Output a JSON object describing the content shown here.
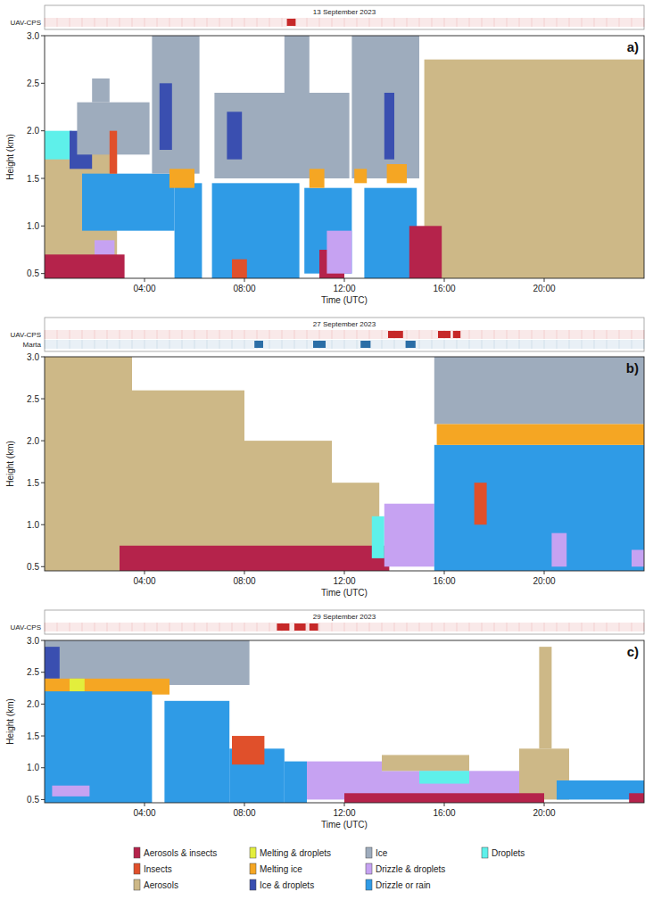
{
  "classes": [
    {
      "name": "Aerosols & insects",
      "color": "#b5234b"
    },
    {
      "name": "Insects",
      "color": "#e0502b"
    },
    {
      "name": "Aerosols",
      "color": "#cdb887"
    },
    {
      "name": "Melting & droplets",
      "color": "#e3ee3c"
    },
    {
      "name": "Melting ice",
      "color": "#f5a623"
    },
    {
      "name": "Ice & droplets",
      "color": "#3a4fb0"
    },
    {
      "name": "Ice",
      "color": "#9eacbd"
    },
    {
      "name": "Drizzle & droplets",
      "color": "#c6a2f2"
    },
    {
      "name": "Drizzle or rain",
      "color": "#2f9be6"
    },
    {
      "name": "Droplets",
      "color": "#5ef0ea"
    }
  ],
  "chart_data": [
    {
      "type": "classification",
      "title": "13 September 2023",
      "panel_label": "a)",
      "x_label": "Time (UTC)",
      "y_label": "Height (km)",
      "xlim": [
        0,
        24
      ],
      "xticks": [
        {
          "value": 4,
          "label": "04:00"
        },
        {
          "value": 8,
          "label": "08:00"
        },
        {
          "value": 12,
          "label": "12:00"
        },
        {
          "value": 16,
          "label": "16:00"
        },
        {
          "value": 20,
          "label": "20:00"
        }
      ],
      "ylim": [
        0.45,
        3.0
      ],
      "yticks": [
        0.5,
        {
          "value": 1,
          "label": "1.0"
        },
        1.5,
        {
          "value": 2,
          "label": "2.0"
        },
        2.5,
        {
          "value": 3,
          "label": "3.0"
        }
      ],
      "flights": [
        {
          "name": "UAV-CPS",
          "color": "#c62828",
          "times": [
            [
              9.7,
              10.05
            ]
          ]
        }
      ],
      "cells": [
        {
          "class": 2,
          "time": [
            0,
            2.9
          ],
          "height": [
            0.45,
            1.85
          ]
        },
        {
          "class": 2,
          "time": [
            15.2,
            24
          ],
          "height": [
            0.45,
            2.75
          ]
        },
        {
          "class": 9,
          "time": [
            0,
            1.1
          ],
          "height": [
            1.7,
            2.0
          ]
        },
        {
          "class": 5,
          "time": [
            1.0,
            1.9
          ],
          "height": [
            1.6,
            2.0
          ]
        },
        {
          "class": 6,
          "time": [
            1.3,
            4.2
          ],
          "height": [
            1.75,
            2.3
          ]
        },
        {
          "class": 6,
          "time": [
            1.9,
            2.6
          ],
          "height": [
            2.3,
            2.55
          ]
        },
        {
          "class": 8,
          "time": [
            1.5,
            5.2
          ],
          "height": [
            0.95,
            1.55
          ]
        },
        {
          "class": 7,
          "time": [
            2.0,
            2.8
          ],
          "height": [
            0.6,
            0.85
          ]
        },
        {
          "class": 6,
          "time": [
            4.3,
            6.2
          ],
          "height": [
            1.55,
            3.0
          ]
        },
        {
          "class": 6,
          "time": [
            6.8,
            12.2
          ],
          "height": [
            1.5,
            2.4
          ]
        },
        {
          "class": 6,
          "time": [
            9.6,
            10.6
          ],
          "height": [
            2.4,
            3.0
          ]
        },
        {
          "class": 6,
          "time": [
            12.3,
            15.0
          ],
          "height": [
            1.5,
            3.0
          ]
        },
        {
          "class": 5,
          "time": [
            4.6,
            5.1
          ],
          "height": [
            1.8,
            2.5
          ]
        },
        {
          "class": 5,
          "time": [
            7.3,
            7.9
          ],
          "height": [
            1.7,
            2.2
          ]
        },
        {
          "class": 5,
          "time": [
            13.6,
            14.0
          ],
          "height": [
            1.7,
            2.4
          ]
        },
        {
          "class": 8,
          "time": [
            5.2,
            6.3
          ],
          "height": [
            0.45,
            1.45
          ]
        },
        {
          "class": 8,
          "time": [
            6.7,
            10.2
          ],
          "height": [
            0.45,
            1.45
          ]
        },
        {
          "class": 8,
          "time": [
            10.4,
            12.3
          ],
          "height": [
            0.5,
            1.4
          ]
        },
        {
          "class": 8,
          "time": [
            12.8,
            14.9
          ],
          "height": [
            0.45,
            1.4
          ]
        },
        {
          "class": 4,
          "time": [
            5.0,
            6.0
          ],
          "height": [
            1.4,
            1.6
          ]
        },
        {
          "class": 4,
          "time": [
            10.6,
            11.2
          ],
          "height": [
            1.4,
            1.6
          ]
        },
        {
          "class": 4,
          "time": [
            12.4,
            12.9
          ],
          "height": [
            1.45,
            1.6
          ]
        },
        {
          "class": 4,
          "time": [
            13.7,
            14.5
          ],
          "height": [
            1.45,
            1.65
          ]
        },
        {
          "class": 1,
          "time": [
            2.6,
            2.9
          ],
          "height": [
            1.55,
            2.0
          ]
        },
        {
          "class": 1,
          "time": [
            7.5,
            8.1
          ],
          "height": [
            0.45,
            0.65
          ]
        },
        {
          "class": 0,
          "time": [
            0,
            3.2
          ],
          "height": [
            0.45,
            0.7
          ]
        },
        {
          "class": 0,
          "time": [
            11.0,
            12.0
          ],
          "height": [
            0.45,
            0.75
          ]
        },
        {
          "class": 0,
          "time": [
            14.6,
            15.9
          ],
          "height": [
            0.45,
            1.0
          ]
        },
        {
          "class": 7,
          "time": [
            11.3,
            12.3
          ],
          "height": [
            0.5,
            0.95
          ]
        }
      ]
    },
    {
      "type": "classification",
      "title": "27 September 2023",
      "panel_label": "b)",
      "x_label": "Time (UTC)",
      "y_label": "Height (km)",
      "xlim": [
        0,
        24
      ],
      "xticks": [
        {
          "value": 4,
          "label": "04:00"
        },
        {
          "value": 8,
          "label": "08:00"
        },
        {
          "value": 12,
          "label": "12:00"
        },
        {
          "value": 16,
          "label": "16:00"
        },
        {
          "value": 20,
          "label": "20:00"
        }
      ],
      "ylim": [
        0.45,
        3.0
      ],
      "yticks": [
        0.5,
        {
          "value": 1,
          "label": "1.0"
        },
        1.5,
        {
          "value": 2,
          "label": "2.0"
        },
        2.5,
        {
          "value": 3,
          "label": "3.0"
        }
      ],
      "flights": [
        {
          "name": "UAV-CPS",
          "color": "#c62828",
          "times": [
            [
              13.75,
              14.35
            ],
            [
              15.75,
              16.25
            ],
            [
              16.35,
              16.65
            ]
          ]
        },
        {
          "name": "Marta",
          "color": "#2b6ea6",
          "times": [
            [
              8.4,
              8.75
            ],
            [
              10.75,
              11.25
            ],
            [
              12.65,
              13.05
            ],
            [
              14.45,
              14.85
            ]
          ]
        }
      ],
      "cells": [
        {
          "class": 2,
          "time": [
            0,
            3.5
          ],
          "height": [
            0.45,
            3.0
          ]
        },
        {
          "class": 2,
          "time": [
            3.5,
            8.0
          ],
          "height": [
            0.45,
            2.6
          ]
        },
        {
          "class": 2,
          "time": [
            8.0,
            11.5
          ],
          "height": [
            0.45,
            2.0
          ]
        },
        {
          "class": 2,
          "time": [
            11.5,
            13.4
          ],
          "height": [
            0.45,
            1.5
          ]
        },
        {
          "class": 0,
          "time": [
            3.0,
            13.8
          ],
          "height": [
            0.45,
            0.75
          ]
        },
        {
          "class": 9,
          "time": [
            13.1,
            13.6
          ],
          "height": [
            0.6,
            1.1
          ]
        },
        {
          "class": 7,
          "time": [
            13.6,
            15.6
          ],
          "height": [
            0.5,
            1.25
          ]
        },
        {
          "class": 8,
          "time": [
            15.6,
            24
          ],
          "height": [
            0.45,
            1.95
          ]
        },
        {
          "class": 4,
          "time": [
            15.7,
            24
          ],
          "height": [
            1.95,
            2.2
          ]
        },
        {
          "class": 6,
          "time": [
            15.6,
            24
          ],
          "height": [
            2.2,
            3.0
          ]
        },
        {
          "class": 1,
          "time": [
            17.2,
            17.7
          ],
          "height": [
            1.0,
            1.5
          ]
        },
        {
          "class": 7,
          "time": [
            20.3,
            20.9
          ],
          "height": [
            0.5,
            0.9
          ]
        },
        {
          "class": 7,
          "time": [
            23.5,
            24
          ],
          "height": [
            0.5,
            0.7
          ]
        }
      ]
    },
    {
      "type": "classification",
      "title": "29 September 2023",
      "panel_label": "c)",
      "x_label": "Time (UTC)",
      "y_label": "Height (km)",
      "xlim": [
        0,
        24
      ],
      "xticks": [
        {
          "value": 4,
          "label": "04:00"
        },
        {
          "value": 8,
          "label": "08:00"
        },
        {
          "value": 12,
          "label": "12:00"
        },
        {
          "value": 16,
          "label": "16:00"
        },
        {
          "value": 20,
          "label": "20:00"
        }
      ],
      "ylim": [
        0.45,
        3.0
      ],
      "yticks": [
        0.5,
        {
          "value": 1,
          "label": "1.0"
        },
        1.5,
        {
          "value": 2,
          "label": "2.0"
        },
        2.5,
        {
          "value": 3,
          "label": "3.0"
        }
      ],
      "flights": [
        {
          "name": "UAV-CPS",
          "color": "#c62828",
          "times": [
            [
              9.3,
              9.8
            ],
            [
              10.0,
              10.45
            ],
            [
              10.6,
              10.95
            ]
          ]
        }
      ],
      "cells": [
        {
          "class": 6,
          "time": [
            0,
            8.2
          ],
          "height": [
            2.3,
            3.0
          ]
        },
        {
          "class": 5,
          "time": [
            0,
            0.6
          ],
          "height": [
            2.4,
            2.9
          ]
        },
        {
          "class": 4,
          "time": [
            0,
            5.0
          ],
          "height": [
            2.15,
            2.4
          ]
        },
        {
          "class": 3,
          "time": [
            1.0,
            1.6
          ],
          "height": [
            2.2,
            2.4
          ]
        },
        {
          "class": 8,
          "time": [
            0,
            4.3
          ],
          "height": [
            0.45,
            2.2
          ]
        },
        {
          "class": 8,
          "time": [
            4.8,
            7.4
          ],
          "height": [
            0.45,
            2.05
          ]
        },
        {
          "class": 8,
          "time": [
            7.4,
            9.6
          ],
          "height": [
            0.45,
            1.3
          ]
        },
        {
          "class": 8,
          "time": [
            9.6,
            10.5
          ],
          "height": [
            0.45,
            1.1
          ]
        },
        {
          "class": 7,
          "time": [
            0.3,
            1.8
          ],
          "height": [
            0.55,
            0.72
          ]
        },
        {
          "class": 1,
          "time": [
            7.5,
            8.8
          ],
          "height": [
            1.05,
            1.5
          ]
        },
        {
          "class": 7,
          "time": [
            10.5,
            13.5
          ],
          "height": [
            0.5,
            1.1
          ]
        },
        {
          "class": 7,
          "time": [
            13.5,
            19.0
          ],
          "height": [
            0.5,
            0.95
          ]
        },
        {
          "class": 2,
          "time": [
            13.5,
            17.0
          ],
          "height": [
            0.95,
            1.2
          ]
        },
        {
          "class": 9,
          "time": [
            15.0,
            17.0
          ],
          "height": [
            0.75,
            0.95
          ]
        },
        {
          "class": 2,
          "time": [
            19.0,
            21.0
          ],
          "height": [
            0.5,
            1.3
          ]
        },
        {
          "class": 2,
          "time": [
            19.8,
            20.3
          ],
          "height": [
            1.3,
            2.9
          ]
        },
        {
          "class": 8,
          "time": [
            20.5,
            24
          ],
          "height": [
            0.5,
            0.8
          ]
        },
        {
          "class": 0,
          "time": [
            12.0,
            20.0
          ],
          "height": [
            0.45,
            0.6
          ]
        },
        {
          "class": 0,
          "time": [
            23.4,
            24
          ],
          "height": [
            0.45,
            0.6
          ]
        }
      ]
    }
  ]
}
